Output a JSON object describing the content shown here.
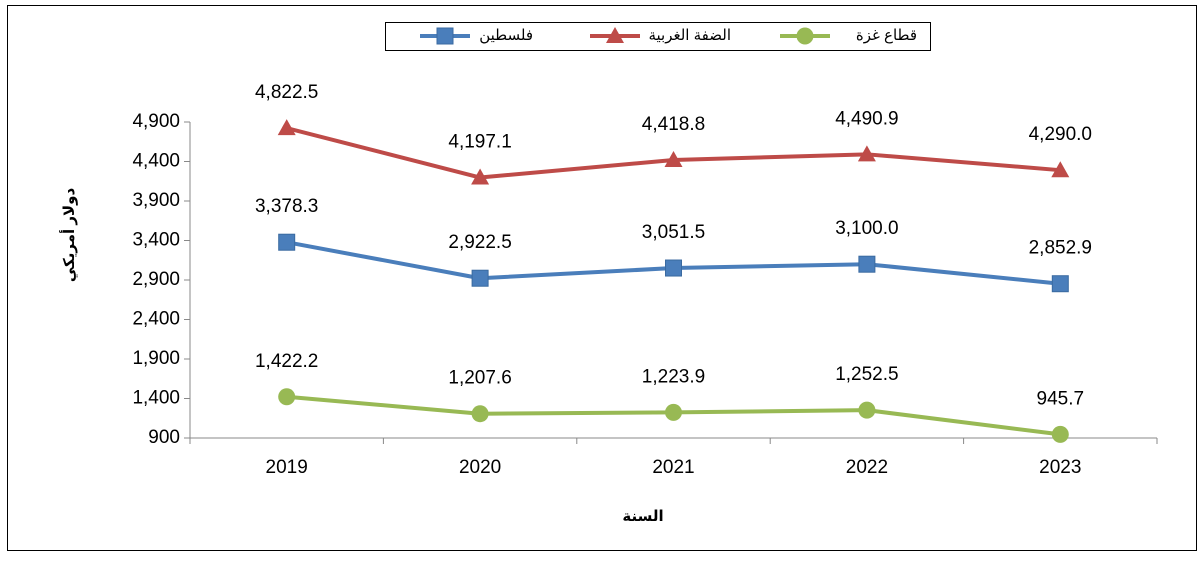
{
  "chart_data": {
    "type": "line",
    "x_label": "السنة",
    "y_label": "دولار أمريكي",
    "categories": [
      "2019",
      "2020",
      "2021",
      "2022",
      "2023"
    ],
    "series": [
      {
        "name": "فلسطين",
        "color": "#4a7ebb",
        "marker": "square",
        "values": [
          3378.3,
          2922.5,
          3051.5,
          3100.0,
          2852.9
        ],
        "value_labels": [
          "3,378.3",
          "2,922.5",
          "3,051.5",
          "3,100.0",
          "2,852.9"
        ]
      },
      {
        "name": "الضفة الغربية",
        "color": "#be4b48",
        "marker": "triangle",
        "values": [
          4822.5,
          4197.1,
          4418.8,
          4490.9,
          4290.0
        ],
        "value_labels": [
          "4,822.5",
          "4,197.1",
          "4,418.8",
          "4,490.9",
          "4,290.0"
        ]
      },
      {
        "name": "قطاع غزة",
        "color": "#98b954",
        "marker": "circle",
        "values": [
          1422.2,
          1207.6,
          1223.9,
          1252.5,
          945.7
        ],
        "value_labels": [
          "1,422.2",
          "1,207.6",
          "1,223.9",
          "1,252.5",
          "945.7"
        ]
      }
    ],
    "ylim": [
      900,
      4900
    ],
    "yticks": [
      900,
      {
        "value": 1400,
        "label": "1,400"
      },
      {
        "value": 1900,
        "label": "1,900"
      },
      {
        "value": 2400,
        "label": "2,400"
      },
      {
        "value": 2900,
        "label": "2,900"
      },
      {
        "value": 3400,
        "label": "3,400"
      },
      {
        "value": 3900,
        "label": "3,900"
      },
      {
        "value": 4400,
        "label": "4,400"
      },
      {
        "value": 4900,
        "label": "4,900"
      }
    ],
    "grid": false,
    "legend": "top"
  }
}
